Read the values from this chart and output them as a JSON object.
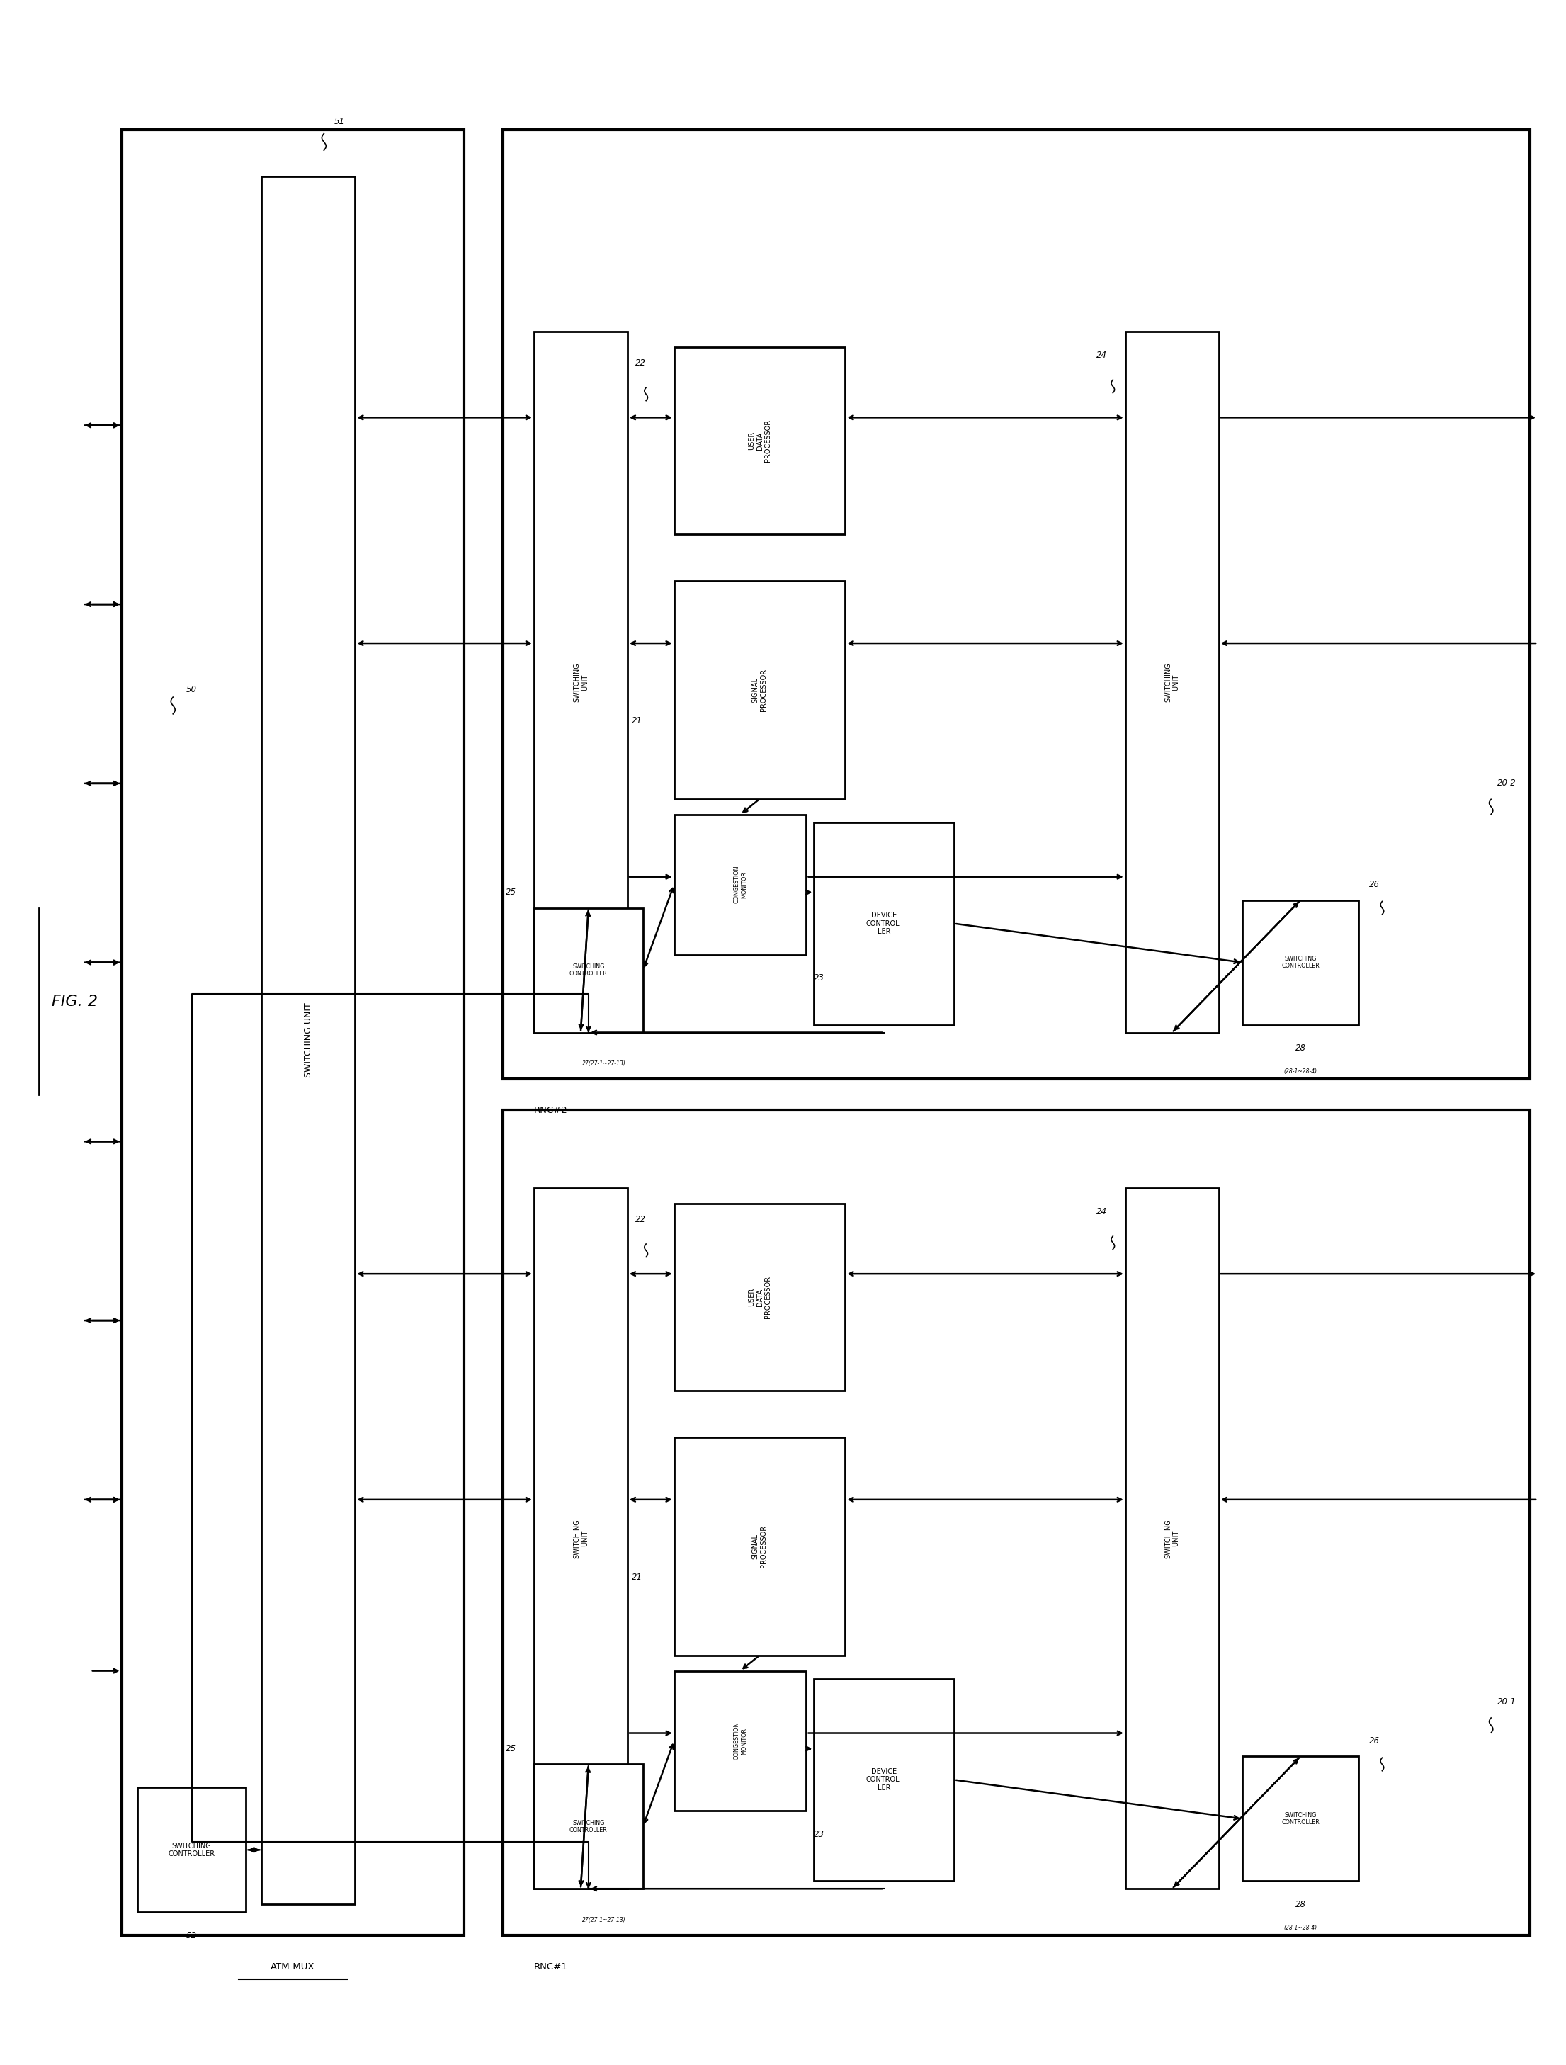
{
  "fig_label": "FIG. 2",
  "bg": "#ffffff",
  "atm_mux_label": "ATM-MUX",
  "switching_unit_label": "SWITCHING UNIT",
  "rnc1_label": "RNC#1",
  "rnc2_label": "RNC#2",
  "ref_50": "50",
  "ref_51": "51",
  "ref_52": "52",
  "ref_201": "20-1",
  "ref_202": "20-2",
  "ref_21": "21",
  "ref_22": "22",
  "ref_23": "23",
  "ref_24": "24",
  "ref_25": "25",
  "ref_26": "26",
  "ref_27": "27(27-1~27-13)",
  "ref_28": "28",
  "ref_28b": "(28-1~28-4)",
  "lbl_swu": "SWITCHING\nUNIT",
  "lbl_udp": "USER\nDATA\nPROCESSOR",
  "lbl_sp": "SIGNAL\nPROCESSOR",
  "lbl_cm": "CONGESTION\nMONITOR",
  "lbl_sc": "SWITCHING\nCONTROLLER",
  "lbl_dc": "DEVICE\nCONTROL-\nLER"
}
